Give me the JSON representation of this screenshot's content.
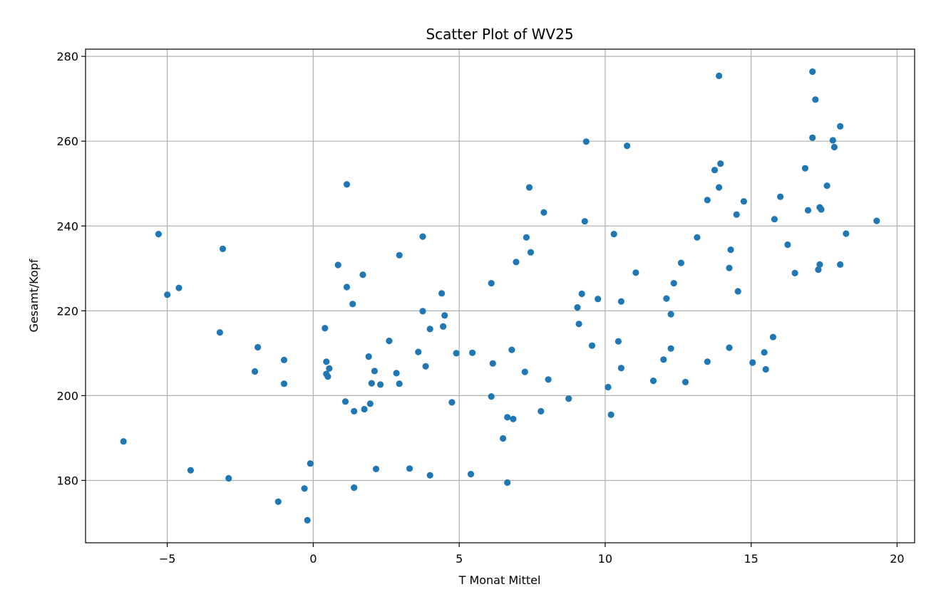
{
  "chart_data": {
    "type": "scatter",
    "title": "Scatter Plot of WV25",
    "xlabel": "T Monat Mittel",
    "ylabel": "Gesamt/Kopf",
    "xlim": [
      -7.8,
      20.6
    ],
    "ylim": [
      165.3,
      281.7
    ],
    "xticks": [
      -5,
      0,
      5,
      10,
      15,
      20
    ],
    "xtick_labels": [
      "−5",
      "0",
      "5",
      "10",
      "15",
      "20"
    ],
    "yticks": [
      180,
      200,
      220,
      240,
      260,
      280
    ],
    "ytick_labels": [
      "180",
      "200",
      "220",
      "240",
      "260",
      "280"
    ],
    "grid": true,
    "marker_color": "#1f77b4",
    "points": [
      [
        -6.5,
        189.2
      ],
      [
        -5.3,
        238.1
      ],
      [
        -5.0,
        223.8
      ],
      [
        -4.6,
        225.4
      ],
      [
        -4.2,
        182.4
      ],
      [
        -3.1,
        234.6
      ],
      [
        -3.2,
        214.9
      ],
      [
        -2.9,
        180.5
      ],
      [
        -2.0,
        205.7
      ],
      [
        -1.9,
        211.4
      ],
      [
        -1.2,
        175.0
      ],
      [
        -1.0,
        208.4
      ],
      [
        -1.0,
        202.8
      ],
      [
        -0.3,
        178.1
      ],
      [
        -0.2,
        170.6
      ],
      [
        -0.1,
        184.0
      ],
      [
        0.4,
        215.9
      ],
      [
        0.45,
        208.0
      ],
      [
        0.45,
        205.1
      ],
      [
        0.5,
        204.5
      ],
      [
        0.55,
        206.4
      ],
      [
        0.85,
        230.8
      ],
      [
        1.1,
        198.6
      ],
      [
        1.15,
        249.8
      ],
      [
        1.15,
        225.6
      ],
      [
        1.35,
        221.6
      ],
      [
        1.4,
        196.3
      ],
      [
        1.4,
        178.3
      ],
      [
        1.7,
        228.5
      ],
      [
        1.75,
        196.8
      ],
      [
        1.9,
        209.2
      ],
      [
        1.95,
        198.1
      ],
      [
        2.0,
        202.9
      ],
      [
        2.1,
        205.8
      ],
      [
        2.15,
        182.7
      ],
      [
        2.3,
        202.6
      ],
      [
        2.6,
        212.9
      ],
      [
        2.85,
        205.3
      ],
      [
        2.95,
        233.1
      ],
      [
        2.95,
        202.8
      ],
      [
        3.3,
        182.8
      ],
      [
        3.6,
        210.3
      ],
      [
        3.75,
        237.5
      ],
      [
        3.75,
        219.9
      ],
      [
        3.85,
        206.9
      ],
      [
        4.0,
        215.7
      ],
      [
        4.0,
        181.2
      ],
      [
        4.4,
        224.1
      ],
      [
        4.45,
        216.3
      ],
      [
        4.5,
        218.9
      ],
      [
        4.75,
        198.4
      ],
      [
        4.9,
        210.0
      ],
      [
        5.4,
        181.5
      ],
      [
        5.45,
        210.1
      ],
      [
        6.1,
        226.5
      ],
      [
        6.1,
        199.8
      ],
      [
        6.15,
        207.6
      ],
      [
        6.5,
        189.9
      ],
      [
        6.65,
        194.9
      ],
      [
        6.65,
        179.5
      ],
      [
        6.8,
        210.8
      ],
      [
        6.85,
        194.5
      ],
      [
        6.95,
        231.5
      ],
      [
        7.25,
        205.6
      ],
      [
        7.3,
        237.3
      ],
      [
        7.4,
        249.1
      ],
      [
        7.45,
        233.8
      ],
      [
        7.8,
        196.3
      ],
      [
        7.9,
        243.2
      ],
      [
        8.05,
        203.8
      ],
      [
        8.75,
        199.3
      ],
      [
        9.05,
        220.8
      ],
      [
        9.1,
        216.9
      ],
      [
        9.2,
        224.0
      ],
      [
        9.3,
        241.1
      ],
      [
        9.35,
        259.9
      ],
      [
        9.55,
        211.8
      ],
      [
        9.75,
        222.8
      ],
      [
        10.1,
        202.0
      ],
      [
        10.2,
        195.5
      ],
      [
        10.3,
        238.1
      ],
      [
        10.45,
        212.8
      ],
      [
        10.55,
        222.2
      ],
      [
        10.55,
        206.5
      ],
      [
        10.75,
        258.9
      ],
      [
        11.05,
        229.0
      ],
      [
        11.65,
        203.5
      ],
      [
        12.0,
        208.5
      ],
      [
        12.1,
        222.9
      ],
      [
        12.25,
        211.1
      ],
      [
        12.25,
        219.2
      ],
      [
        12.35,
        226.5
      ],
      [
        12.6,
        231.3
      ],
      [
        12.75,
        203.2
      ],
      [
        13.15,
        237.3
      ],
      [
        13.5,
        246.1
      ],
      [
        13.5,
        208.0
      ],
      [
        13.75,
        253.2
      ],
      [
        13.9,
        275.4
      ],
      [
        13.9,
        249.1
      ],
      [
        13.95,
        254.7
      ],
      [
        14.25,
        211.3
      ],
      [
        14.25,
        230.1
      ],
      [
        14.3,
        234.4
      ],
      [
        14.5,
        242.7
      ],
      [
        14.55,
        224.6
      ],
      [
        14.75,
        245.8
      ],
      [
        15.05,
        207.8
      ],
      [
        15.45,
        210.2
      ],
      [
        15.5,
        206.2
      ],
      [
        15.75,
        213.8
      ],
      [
        15.8,
        241.6
      ],
      [
        16.0,
        246.9
      ],
      [
        16.25,
        235.6
      ],
      [
        16.5,
        228.9
      ],
      [
        16.85,
        253.6
      ],
      [
        16.95,
        243.7
      ],
      [
        17.1,
        276.4
      ],
      [
        17.1,
        260.8
      ],
      [
        17.2,
        269.8
      ],
      [
        17.3,
        229.7
      ],
      [
        17.35,
        244.4
      ],
      [
        17.35,
        230.9
      ],
      [
        17.4,
        243.9
      ],
      [
        17.6,
        249.5
      ],
      [
        17.8,
        260.2
      ],
      [
        17.85,
        258.6
      ],
      [
        18.05,
        263.5
      ],
      [
        18.05,
        230.9
      ],
      [
        18.25,
        238.2
      ],
      [
        19.3,
        241.2
      ]
    ]
  }
}
